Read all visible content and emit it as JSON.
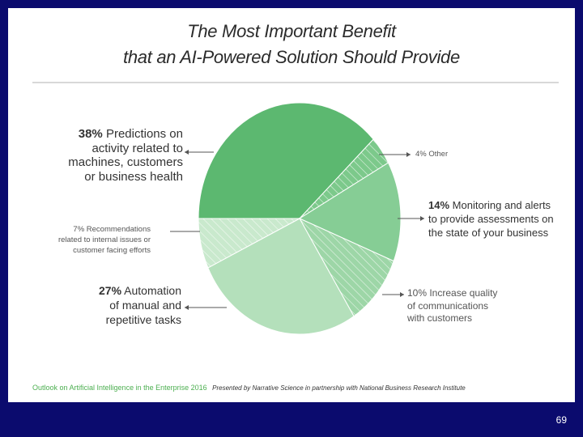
{
  "title_line1": "The Most Important Benefit",
  "title_line2": "that an AI-Powered Solution Should Provide",
  "chart_data": {
    "type": "pie",
    "title": "The Most Important Benefit that an AI-Powered Solution Should Provide",
    "unit": "%",
    "slices": [
      {
        "key": "predictions",
        "value": 38,
        "pct": "38%",
        "label": "Predictions on activity related to machines, customers or business health",
        "color": "#5cb870",
        "hatched": false
      },
      {
        "key": "other",
        "value": 4,
        "pct": "4%",
        "label": "Other",
        "color": "#7cc98b",
        "hatched": true
      },
      {
        "key": "monitoring",
        "value": 14,
        "pct": "14%",
        "label": "Monitoring and alerts to provide assessments on the state of your business",
        "color": "#86cd95",
        "hatched": false
      },
      {
        "key": "communications",
        "value": 10,
        "pct": "10%",
        "label": "Increase quality of communications with customers",
        "color": "#9dd6a7",
        "hatched": true
      },
      {
        "key": "automation",
        "value": 27,
        "pct": "27%",
        "label": "Automation of manual and repetitive tasks",
        "color": "#b4e0bb",
        "hatched": false
      },
      {
        "key": "recommendations",
        "value": 7,
        "pct": "7%",
        "label": "Recommendations related to internal issues or customer facing efforts",
        "color": "#c9e9cd",
        "hatched": true
      }
    ]
  },
  "labels": {
    "predictions": {
      "pct": "38%",
      "lines": [
        "Predictions on",
        "activity related to",
        "machines, customers",
        "or business health"
      ]
    },
    "other": {
      "text": "4% Other"
    },
    "monitoring": {
      "pct": "14%",
      "lines": [
        "Monitoring and alerts",
        "to provide assessments on",
        "the state of your business"
      ]
    },
    "communications": {
      "lines": [
        "10% Increase quality",
        "of communications",
        "with customers"
      ]
    },
    "automation": {
      "pct": "27%",
      "lines": [
        "Automation",
        "of manual and",
        "repetitive tasks"
      ]
    },
    "recommendations": {
      "lines": [
        "7% Recommendations",
        "related to internal issues or",
        "customer facing efforts"
      ]
    }
  },
  "footer": {
    "left": "Outlook on Artificial Intelligence in the Enterprise 2016",
    "right": "Presented by Narrative Science in partnership with National Business Research Institute"
  },
  "page_number": "69"
}
